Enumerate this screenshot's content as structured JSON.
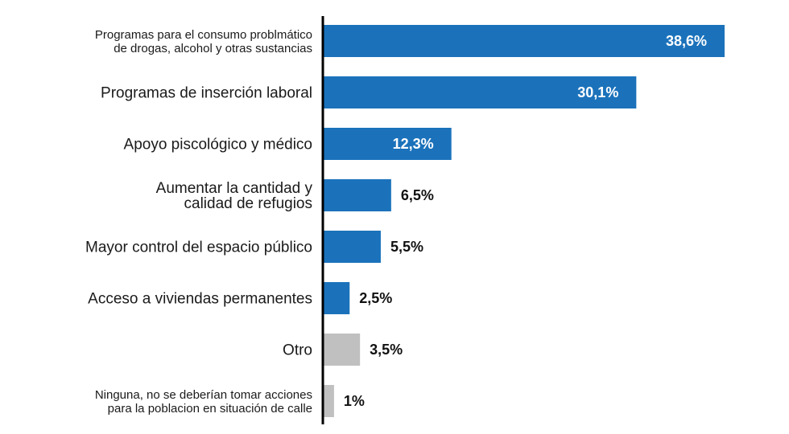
{
  "chart_data": {
    "type": "bar",
    "orientation": "horizontal",
    "title": "",
    "xlabel": "",
    "ylabel": "",
    "xlim": [
      0,
      40
    ],
    "grid": false,
    "legend": "none",
    "categories": [
      [
        "Programas para el consumo problmático",
        "de drogas, alcohol y otras sustancias"
      ],
      [
        "Programas de inserción laboral"
      ],
      [
        "Apoyo piscológico y médico"
      ],
      [
        "Aumentar la cantidad y",
        "calidad de refugios"
      ],
      [
        "Mayor control del espacio público"
      ],
      [
        "Acceso a viviendas permanentes"
      ],
      [
        "Otro"
      ],
      [
        "Ninguna, no se deberían tomar acciones",
        "para la poblacion en situación de calle"
      ]
    ],
    "values": [
      38.6,
      30.1,
      12.3,
      6.5,
      5.5,
      2.5,
      3.5,
      1
    ],
    "value_labels": [
      "38,6%",
      "30,1%",
      "12,3%",
      "6,5%",
      "5,5%",
      "2,5%",
      "3,5%",
      "1%"
    ],
    "bar_groups": [
      "primary",
      "primary",
      "primary",
      "primary",
      "primary",
      "primary",
      "secondary",
      "secondary"
    ],
    "colors": {
      "primary": "#1b72bb",
      "secondary": "#c0c0c0",
      "axis": "#000000",
      "label_inside": "#ffffff",
      "label_outside": "#111111"
    }
  }
}
